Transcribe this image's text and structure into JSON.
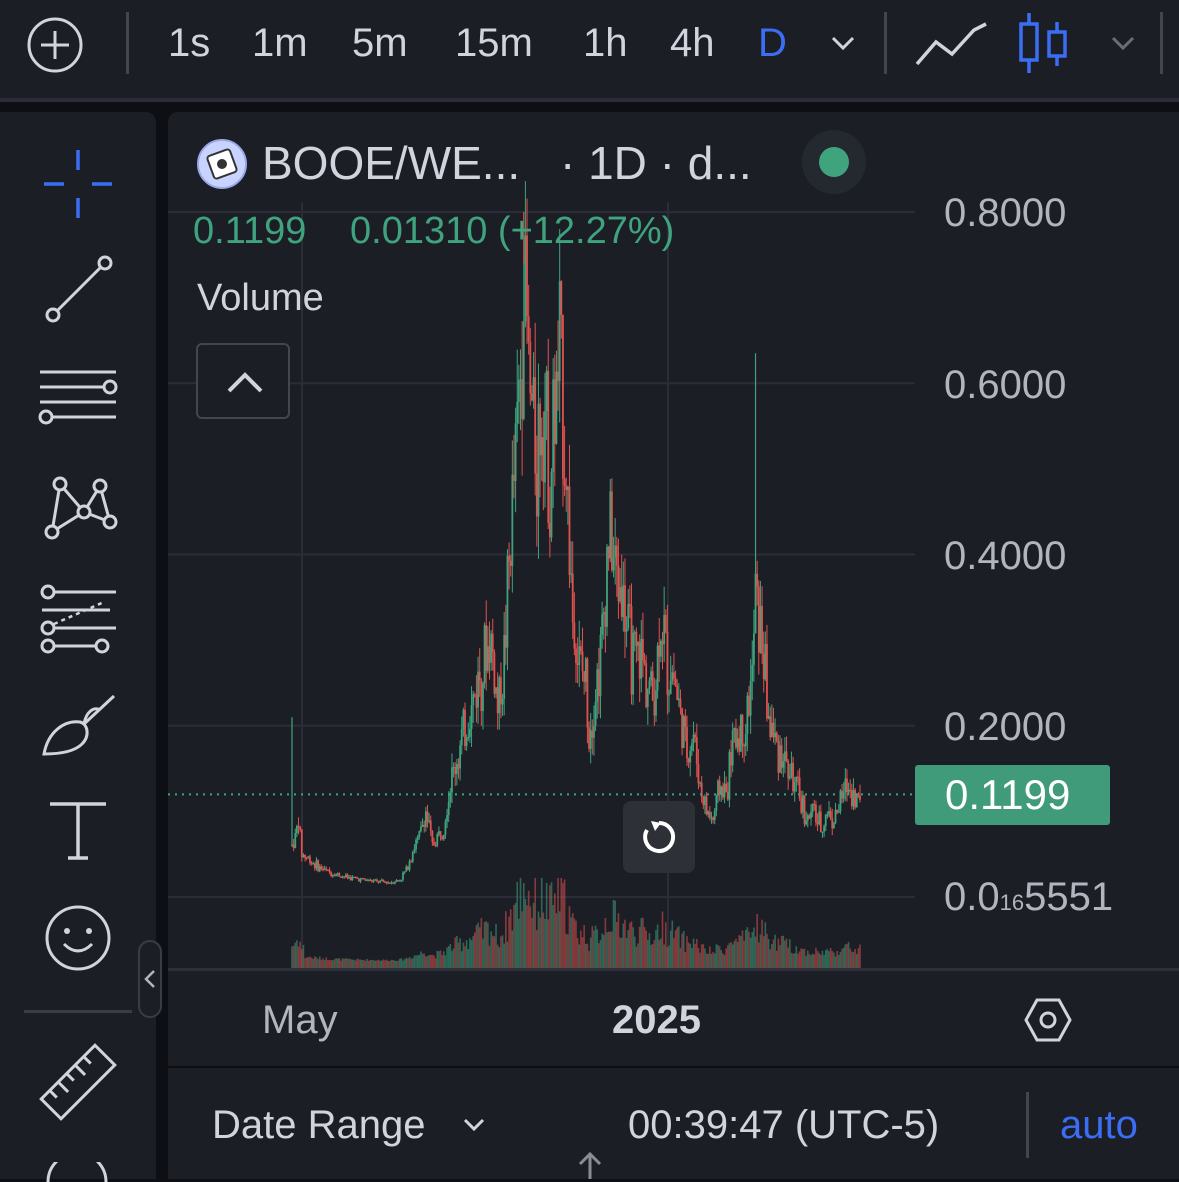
{
  "toolbar": {
    "timeframes": [
      "1s",
      "1m",
      "5m",
      "15m",
      "1h",
      "4h",
      "D"
    ],
    "active_timeframe": "D",
    "accent": "#3b6ef5"
  },
  "left_tools": [
    {
      "name": "crosshair-icon"
    },
    {
      "name": "trend-line-icon"
    },
    {
      "name": "horizontal-lines-icon"
    },
    {
      "name": "pattern-icon"
    },
    {
      "name": "fib-icon"
    },
    {
      "name": "brush-icon"
    },
    {
      "name": "text-icon"
    },
    {
      "name": "emoji-icon"
    },
    {
      "name": "ruler-icon"
    }
  ],
  "legend": {
    "symbol": "BOOE/WE...",
    "interval": "· 1D · d...",
    "close": "0.1199",
    "change": "0.01310 (+12.27%)",
    "volume_label": "Volume"
  },
  "price_axis": {
    "labels": [
      "0.8000",
      "0.6000",
      "0.4000",
      "0.2000"
    ],
    "bottom_label_prefix": "0.0",
    "bottom_label_sub": "16",
    "bottom_label_suffix": "5551",
    "current_price": "0.1199",
    "up_color": "#3fa37e",
    "down_color": "#e0524e"
  },
  "time_axis": {
    "labels": [
      "May",
      "2025"
    ]
  },
  "bottom_bar": {
    "date_range": "Date Range",
    "clock": "00:39:47 (UTC-5)",
    "auto": "auto"
  },
  "chart_data": {
    "type": "candlestick",
    "title": "",
    "series_name": "",
    "ylim": [
      0,
      0.8
    ],
    "x_labels": [
      "May",
      "2025"
    ],
    "last_price": 0.1199,
    "price_path": [
      [
        0,
        0.06
      ],
      [
        2,
        0.07
      ],
      [
        4,
        0.09
      ],
      [
        6,
        0.05
      ],
      [
        10,
        0.045
      ],
      [
        16,
        0.035
      ],
      [
        24,
        0.028
      ],
      [
        34,
        0.023
      ],
      [
        44,
        0.02
      ],
      [
        52,
        0.018
      ],
      [
        60,
        0.017
      ],
      [
        66,
        0.02
      ],
      [
        70,
        0.032
      ],
      [
        74,
        0.055
      ],
      [
        78,
        0.07
      ],
      [
        82,
        0.1
      ],
      [
        86,
        0.06
      ],
      [
        92,
        0.08
      ],
      [
        98,
        0.14
      ],
      [
        104,
        0.18
      ],
      [
        110,
        0.22
      ],
      [
        116,
        0.27
      ],
      [
        122,
        0.3
      ],
      [
        126,
        0.22
      ],
      [
        130,
        0.28
      ],
      [
        134,
        0.42
      ],
      [
        138,
        0.55
      ],
      [
        140,
        0.62
      ],
      [
        142,
        0.74
      ],
      [
        144,
        0.66
      ],
      [
        146,
        0.58
      ],
      [
        150,
        0.52
      ],
      [
        154,
        0.6
      ],
      [
        158,
        0.48
      ],
      [
        160,
        0.54
      ],
      [
        164,
        0.63
      ],
      [
        168,
        0.5
      ],
      [
        172,
        0.33
      ],
      [
        176,
        0.27
      ],
      [
        180,
        0.25
      ],
      [
        182,
        0.2
      ],
      [
        186,
        0.24
      ],
      [
        190,
        0.3
      ],
      [
        194,
        0.43
      ],
      [
        198,
        0.38
      ],
      [
        202,
        0.36
      ],
      [
        206,
        0.3
      ],
      [
        210,
        0.27
      ],
      [
        214,
        0.28
      ],
      [
        218,
        0.25
      ],
      [
        222,
        0.23
      ],
      [
        226,
        0.33
      ],
      [
        230,
        0.27
      ],
      [
        234,
        0.26
      ],
      [
        238,
        0.21
      ],
      [
        242,
        0.17
      ],
      [
        246,
        0.19
      ],
      [
        250,
        0.13
      ],
      [
        254,
        0.1
      ],
      [
        258,
        0.09
      ],
      [
        262,
        0.13
      ],
      [
        266,
        0.12
      ],
      [
        270,
        0.18
      ],
      [
        274,
        0.19
      ],
      [
        278,
        0.2
      ],
      [
        282,
        0.26
      ],
      [
        284,
        0.35
      ],
      [
        288,
        0.3
      ],
      [
        292,
        0.21
      ],
      [
        296,
        0.18
      ],
      [
        300,
        0.17
      ],
      [
        304,
        0.15
      ],
      [
        308,
        0.13
      ],
      [
        312,
        0.11
      ],
      [
        316,
        0.09
      ],
      [
        320,
        0.1
      ],
      [
        324,
        0.08
      ],
      [
        328,
        0.1
      ],
      [
        332,
        0.09
      ],
      [
        336,
        0.11
      ],
      [
        340,
        0.13
      ],
      [
        344,
        0.12
      ],
      [
        348,
        0.11
      ]
    ]
  }
}
